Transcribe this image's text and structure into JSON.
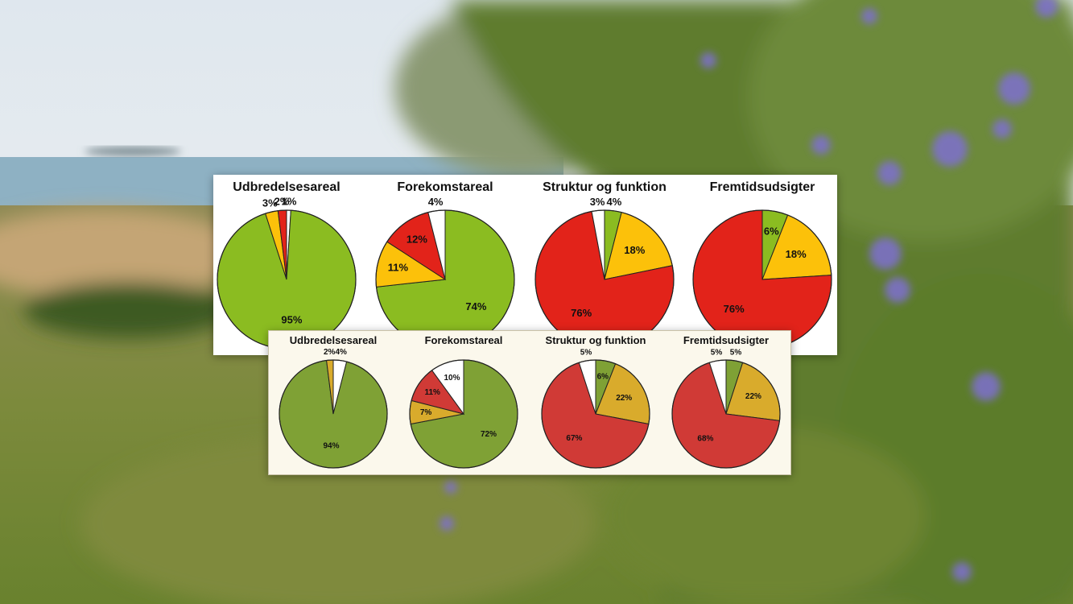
{
  "colors": {
    "top": {
      "green": "#8bbc21",
      "yellow": "#fcc10a",
      "red": "#e2231a",
      "white": "#ffffff"
    },
    "bottom": {
      "green": "#7fa135",
      "yellow": "#d9ab2c",
      "red": "#d03a36",
      "white": "#ffffff"
    }
  },
  "chart_data": [
    {
      "type": "pie",
      "group": "top",
      "title": "Udbredelsesareal",
      "slices": [
        {
          "label": "1%",
          "value": 1,
          "color": "white"
        },
        {
          "label": "95%",
          "value": 95,
          "color": "green"
        },
        {
          "label": "3%",
          "value": 3,
          "color": "yellow"
        },
        {
          "label": "2%",
          "value": 2,
          "color": "red"
        }
      ]
    },
    {
      "type": "pie",
      "group": "top",
      "title": "Forekomstareal",
      "slices": [
        {
          "label": "74%",
          "value": 74,
          "color": "green"
        },
        {
          "label": "11%",
          "value": 11,
          "color": "yellow"
        },
        {
          "label": "12%",
          "value": 12,
          "color": "red"
        },
        {
          "label": "4%",
          "value": 4,
          "color": "white"
        }
      ]
    },
    {
      "type": "pie",
      "group": "top",
      "title": "Struktur og funktion",
      "slices": [
        {
          "label": "4%",
          "value": 4,
          "color": "green"
        },
        {
          "label": "18%",
          "value": 18,
          "color": "yellow"
        },
        {
          "label": "76%",
          "value": 76,
          "color": "red"
        },
        {
          "label": "3%",
          "value": 3,
          "color": "white"
        }
      ]
    },
    {
      "type": "pie",
      "group": "top",
      "title": "Fremtidsudsigter",
      "slices": [
        {
          "label": "6%",
          "value": 6,
          "color": "green"
        },
        {
          "label": "18%",
          "value": 18,
          "color": "yellow"
        },
        {
          "label": "76%",
          "value": 76,
          "color": "red"
        }
      ]
    },
    {
      "type": "pie",
      "group": "bottom",
      "title": "Udbredelsesareal",
      "slices": [
        {
          "label": "4%",
          "value": 4,
          "color": "white"
        },
        {
          "label": "94%",
          "value": 94,
          "color": "green"
        },
        {
          "label": "2%",
          "value": 2,
          "color": "yellow"
        }
      ]
    },
    {
      "type": "pie",
      "group": "bottom",
      "title": "Forekomstareal",
      "slices": [
        {
          "label": "72%",
          "value": 72,
          "color": "green"
        },
        {
          "label": "7%",
          "value": 7,
          "color": "yellow"
        },
        {
          "label": "11%",
          "value": 11,
          "color": "red"
        },
        {
          "label": "10%",
          "value": 10,
          "color": "white"
        }
      ]
    },
    {
      "type": "pie",
      "group": "bottom",
      "title": "Struktur og funktion",
      "slices": [
        {
          "label": "6%",
          "value": 6,
          "color": "green"
        },
        {
          "label": "22%",
          "value": 22,
          "color": "yellow"
        },
        {
          "label": "67%",
          "value": 67,
          "color": "red"
        },
        {
          "label": "5%",
          "value": 5,
          "color": "white"
        }
      ]
    },
    {
      "type": "pie",
      "group": "bottom",
      "title": "Fremtidsudsigter",
      "slices": [
        {
          "label": "5%",
          "value": 5,
          "color": "green"
        },
        {
          "label": "22%",
          "value": 22,
          "color": "yellow"
        },
        {
          "label": "68%",
          "value": 68,
          "color": "red"
        },
        {
          "label": "5%",
          "value": 5,
          "color": "white"
        }
      ]
    }
  ]
}
